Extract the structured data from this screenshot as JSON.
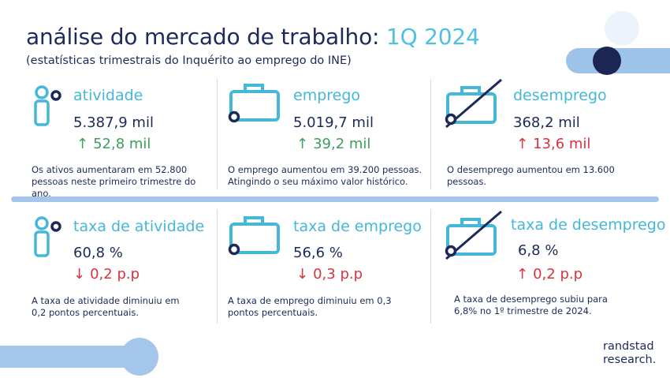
{
  "header": {
    "title_main": "análise do mercado de trabalho:",
    "title_period": "1Q 2024",
    "subtitle": "(estatísticas trimestrais do Inquérito ao emprego do INE)"
  },
  "cards": [
    {
      "title": "atividade",
      "value": "5.387,9 mil",
      "change_arrow": "↑",
      "change": "52,8 mil",
      "desc": "Os ativos aumentaram em 52.800 pessoas neste primeiro trimestre do ano.",
      "icon": "person-icon"
    },
    {
      "title": "emprego",
      "value": "5.019,7 mil",
      "change_arrow": "↑",
      "change": "39,2 mil",
      "desc": "O emprego aumentou em 39.200 pessoas. Atingindo o seu máximo valor histórico.",
      "icon": "briefcase-icon"
    },
    {
      "title": "desemprego",
      "value": "368,2 mil",
      "change_arrow": "↑",
      "change": "13,6 mil",
      "desc": "O desemprego aumentou em 13.600 pessoas.",
      "icon": "crossed-briefcase-icon"
    },
    {
      "title": "taxa de atividade",
      "value": "60,8 %",
      "change_arrow": "↓",
      "change": "0,2 p.p",
      "desc": "A taxa de atividade diminuiu em 0,2 pontos percentuais.",
      "icon": "person-icon"
    },
    {
      "title": "taxa de emprego",
      "value": "56,6 %",
      "change_arrow": "↓",
      "change": "0,3 p.p",
      "desc": "A taxa de emprego diminuiu em 0,3 pontos percentuais.",
      "icon": "briefcase-icon"
    },
    {
      "title": "taxa de desemprego",
      "value": "6,8 %",
      "change_arrow": "↑",
      "change": "0,2 p.p",
      "desc": "A taxa de desemprego subiu para 6,8% no 1º trimestre de 2024.",
      "icon": "crossed-briefcase-icon"
    }
  ],
  "colors": {
    "accent": "#45b7d9",
    "navy": "#1c2a5a",
    "green": "#3e9d5f",
    "red": "#d9333f",
    "light_blue": "#a8c8ec"
  },
  "brand": {
    "line1": "randstad",
    "line2": "research."
  }
}
